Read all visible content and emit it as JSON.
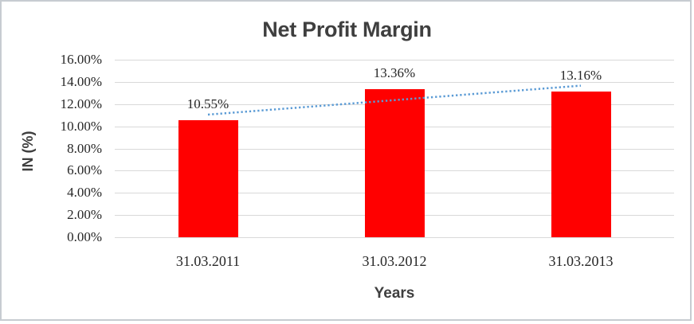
{
  "chart_data": {
    "type": "bar",
    "title": "Net Profit Margin",
    "categories": [
      "31.03.2011",
      "31.03.2012",
      "31.03.2013"
    ],
    "values": [
      10.55,
      13.36,
      13.16
    ],
    "value_labels": [
      "10.55%",
      "13.36%",
      "13.16%"
    ],
    "xlabel": "Years",
    "ylabel": "IN (%)",
    "ylim": [
      0,
      16
    ],
    "ytick_step": 2,
    "ytick_labels": [
      "0.00%",
      "2.00%",
      "4.00%",
      "6.00%",
      "8.00%",
      "10.00%",
      "12.00%",
      "14.00%",
      "16.00%"
    ],
    "grid": true,
    "legend": "none",
    "trendline": {
      "type": "linear",
      "style": "dotted",
      "fit_values": [
        11.05,
        12.36,
        13.66
      ]
    },
    "colors": {
      "bar": "#FF0000",
      "trendline": "#5B9BD5",
      "gridline": "#d9d9d9",
      "title_text": "#3f3f3f",
      "tick_text": "#262626",
      "frame_border": "#c7ccd1",
      "background": "#ffffff"
    }
  }
}
